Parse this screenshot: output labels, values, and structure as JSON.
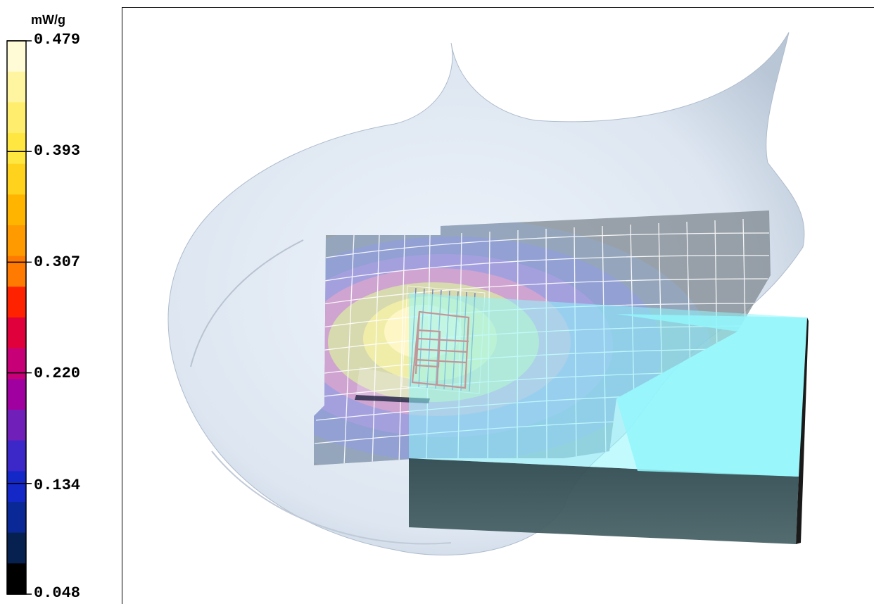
{
  "colorbar": {
    "unit": "mW/g",
    "ticks": [
      "0.479",
      "0.393",
      "0.307",
      "0.220",
      "0.134",
      "0.048"
    ],
    "colors": [
      "#fffbd6",
      "#fff5a0",
      "#ffee6e",
      "#ffe640",
      "#ffd21e",
      "#ffb400",
      "#ff9a00",
      "#ff7a00",
      "#ff2200",
      "#e0003c",
      "#c80078",
      "#a000a0",
      "#7020b8",
      "#3c28c8",
      "#1428c8",
      "#0a2896",
      "#062050",
      "#000000"
    ]
  },
  "colors": {
    "head_surface": "#dce6f2",
    "grid_line": "#ffffff",
    "probe_outline": "#ff2020",
    "phone_top": "#8ff6fc",
    "phone_side": "#3f5a60"
  }
}
